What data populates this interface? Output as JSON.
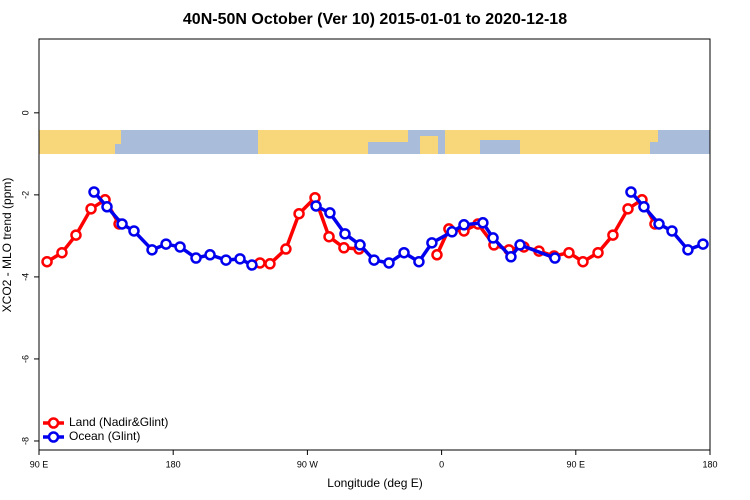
{
  "chart_data": {
    "type": "line",
    "title": "40N-50N October (Ver 10)   2015-01-01 to 2020-12-18",
    "x_label": "Longitude (deg E)",
    "y_label": "XCO2 - MLO trend (ppm)",
    "xlim": [
      90,
      540
    ],
    "xticks": [
      {
        "value": 90,
        "label": "90 E"
      },
      180,
      {
        "value": 270,
        "label": "90 W"
      },
      {
        "value": 360,
        "label": "0"
      },
      {
        "value": 450,
        "label": "90 E"
      },
      {
        "value": 540,
        "label": "180"
      }
    ],
    "ylim": [
      -8.22,
      1.8
    ],
    "yticks": [
      0,
      -2,
      -4,
      -6,
      -8
    ],
    "legend": "bottom-left",
    "series": [
      {
        "name": "Land (Nadir&Glint)",
        "color": "#ff0000",
        "x": [
          95.4,
          105.4,
          114.8,
          124.9,
          134.3,
          143.7,
          null,
          238.2,
          244.9,
          255.6,
          264.4,
          275.1,
          284.5,
          294.5,
          304.6,
          null,
          356.9,
          364.9,
          375.0,
          384.4,
          395.1,
          405.2,
          415.2,
          425.3,
          435.4,
          445.4,
          454.8,
          464.9,
          474.9,
          485.0,
          494.4,
          503.1
        ],
        "values": [
          -3.63,
          -3.41,
          -2.98,
          -2.34,
          -2.12,
          -2.71,
          null,
          -3.66,
          -3.68,
          -3.32,
          -2.46,
          -2.07,
          -3.02,
          -3.29,
          -3.32,
          null,
          -3.46,
          -2.83,
          -2.88,
          -2.71,
          -3.22,
          -3.34,
          -3.27,
          -3.37,
          -3.49,
          -3.41,
          -3.63,
          -3.41,
          -2.98,
          -2.34,
          -2.12,
          -2.71
        ]
      },
      {
        "name": "Ocean (Glint)",
        "color": "#0000ee",
        "x": [
          126.9,
          135.6,
          145.7,
          153.7,
          165.8,
          175.2,
          184.6,
          195.3,
          204.7,
          215.4,
          224.8,
          232.8,
          null,
          275.8,
          285.1,
          295.2,
          305.3,
          314.7,
          324.7,
          334.8,
          344.8,
          353.5,
          367.0,
          375.0,
          387.7,
          394.5,
          406.5,
          412.6,
          436.0,
          null,
          487.0,
          495.7,
          505.8,
          514.5,
          525.2,
          535.3
        ],
        "values": [
          -1.93,
          -2.29,
          -2.71,
          -2.88,
          -3.34,
          -3.2,
          -3.27,
          -3.54,
          -3.46,
          -3.59,
          -3.56,
          -3.71,
          null,
          -2.27,
          -2.44,
          -2.95,
          -3.22,
          -3.59,
          -3.66,
          -3.41,
          -3.63,
          -3.17,
          -2.9,
          -2.73,
          -2.68,
          -3.05,
          -3.51,
          -3.22,
          -3.54,
          null,
          -1.93,
          -2.29,
          -2.71,
          -2.88,
          -3.34,
          -3.2
        ]
      }
    ]
  }
}
